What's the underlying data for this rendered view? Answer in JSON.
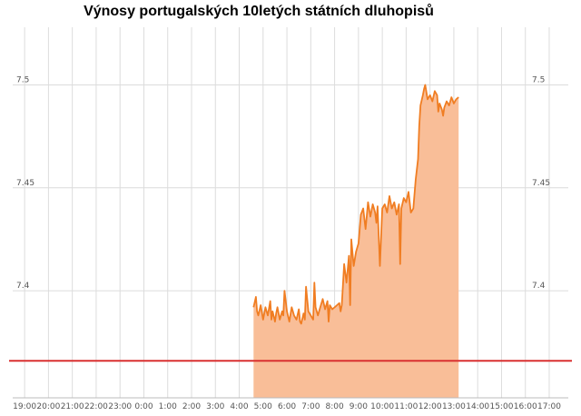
{
  "chart_data": {
    "type": "area",
    "title": "Výnosy portugalských 10letých státních dluhopisů",
    "xlabel": "",
    "ylabel": "",
    "x_ticks": [
      "19:00",
      "20:00",
      "21:00",
      "22:00",
      "23:00",
      "0:00",
      "1:00",
      "2:00",
      "3:00",
      "4:00",
      "5:00",
      "6:00",
      "7:00",
      "8:00",
      "9:00",
      "10:00",
      "11:00",
      "12:00",
      "13:00",
      "14:00",
      "15:00",
      "16:00",
      "17:00"
    ],
    "y_ticks": [
      "7.4",
      "7.45",
      "7.5"
    ],
    "y_tick_values": [
      7.4,
      7.45,
      7.5
    ],
    "ylim": [
      7.348,
      7.528
    ],
    "xlim_hours_from_19": [
      -0.5,
      22.8
    ],
    "reference_line": 7.366,
    "grid": true,
    "y_axis_labels_both_sides": true,
    "series": [
      {
        "x": [
          9.6,
          9.7,
          9.75,
          9.8,
          9.9,
          10.0,
          10.1,
          10.2,
          10.3,
          10.35,
          10.4,
          10.5,
          10.55,
          10.6,
          10.7,
          10.8,
          10.85,
          10.9,
          11.0,
          11.1,
          11.2,
          11.3,
          11.4,
          11.5,
          11.55,
          11.6,
          11.7,
          11.75,
          11.8,
          11.9,
          12.0,
          12.1,
          12.15,
          12.2,
          12.3,
          12.4,
          12.5,
          12.6,
          12.7,
          12.75,
          12.8,
          12.9,
          13.0,
          13.1,
          13.2,
          13.25,
          13.3,
          13.4,
          13.5,
          13.6,
          13.65,
          13.7,
          13.8,
          13.9,
          14.0,
          14.1,
          14.2,
          14.3,
          14.4,
          14.5,
          14.6,
          14.7,
          14.75,
          14.8,
          14.9,
          15.0,
          15.1,
          15.2,
          15.3,
          15.4,
          15.5,
          15.6,
          15.7,
          15.75,
          15.8,
          15.9,
          16.0,
          16.1,
          16.2,
          16.3,
          16.4,
          16.5,
          16.55,
          16.6,
          16.7,
          16.75,
          16.8,
          16.9,
          17.0,
          17.1,
          17.2,
          17.3,
          17.35,
          17.4,
          17.5,
          17.55,
          17.6,
          17.7,
          17.8,
          17.9,
          18.0,
          18.1,
          18.2
        ],
        "values": [
          7.392,
          7.397,
          7.39,
          7.388,
          7.393,
          7.386,
          7.392,
          7.388,
          7.395,
          7.386,
          7.39,
          7.385,
          7.389,
          7.392,
          7.386,
          7.39,
          7.388,
          7.4,
          7.39,
          7.385,
          7.392,
          7.388,
          7.386,
          7.391,
          7.385,
          7.384,
          7.389,
          7.386,
          7.402,
          7.39,
          7.388,
          7.386,
          7.404,
          7.392,
          7.388,
          7.392,
          7.396,
          7.391,
          7.395,
          7.385,
          7.393,
          7.391,
          7.392,
          7.393,
          7.394,
          7.39,
          7.393,
          7.413,
          7.404,
          7.417,
          7.393,
          7.425,
          7.412,
          7.419,
          7.423,
          7.437,
          7.44,
          7.43,
          7.443,
          7.436,
          7.442,
          7.438,
          7.433,
          7.441,
          7.412,
          7.44,
          7.442,
          7.438,
          7.446,
          7.44,
          7.443,
          7.437,
          7.442,
          7.413,
          7.44,
          7.445,
          7.443,
          7.448,
          7.438,
          7.44,
          7.454,
          7.464,
          7.48,
          7.49,
          7.495,
          7.498,
          7.5,
          7.493,
          7.495,
          7.492,
          7.497,
          7.495,
          7.487,
          7.491,
          7.488,
          7.485,
          7.489,
          7.492,
          7.49,
          7.494,
          7.491,
          7.493,
          7.494
        ]
      }
    ],
    "colors": {
      "line": "#f07d22",
      "fill": "#f9be98",
      "reference": "#d93030",
      "grid": "#dcdcdc",
      "tick_text": "#555555"
    }
  }
}
